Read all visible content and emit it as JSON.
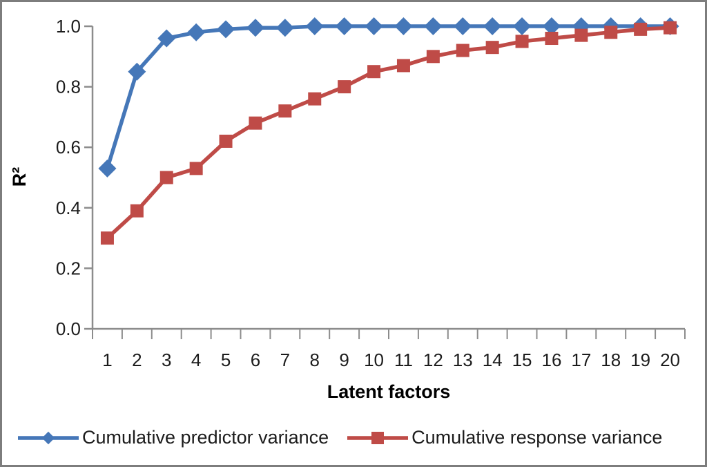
{
  "frame": {
    "background": "#ffffff",
    "border_color": "#7d7d7d"
  },
  "chart_data": {
    "type": "line",
    "title": "",
    "xlabel": "Latent factors",
    "ylabel": "R²",
    "categories": [
      1,
      2,
      3,
      4,
      5,
      6,
      7,
      8,
      9,
      10,
      11,
      12,
      13,
      14,
      15,
      16,
      17,
      18,
      19,
      20
    ],
    "y_tick_labels": [
      "0.0",
      "0.2",
      "0.4",
      "0.6",
      "0.8",
      "1.0"
    ],
    "ylim": [
      0.0,
      1.0
    ],
    "grid": false,
    "legend_position": "bottom",
    "axis_color": "#8c8c8c",
    "tick_label_color": "#1c1c1c",
    "series": [
      {
        "name": "Cumulative predictor variance",
        "color": "#4577b8",
        "marker": "diamond",
        "values": [
          0.53,
          0.85,
          0.96,
          0.98,
          0.99,
          0.995,
          0.995,
          1.0,
          1.0,
          1.0,
          1.0,
          1.0,
          1.0,
          1.0,
          1.0,
          1.0,
          1.0,
          1.0,
          1.0,
          1.0
        ]
      },
      {
        "name": "Cumulative response variance",
        "color": "#bf4b47",
        "marker": "square",
        "values": [
          0.3,
          0.39,
          0.5,
          0.53,
          0.62,
          0.68,
          0.72,
          0.76,
          0.8,
          0.85,
          0.87,
          0.9,
          0.92,
          0.93,
          0.95,
          0.96,
          0.97,
          0.98,
          0.99,
          0.995
        ]
      }
    ]
  }
}
